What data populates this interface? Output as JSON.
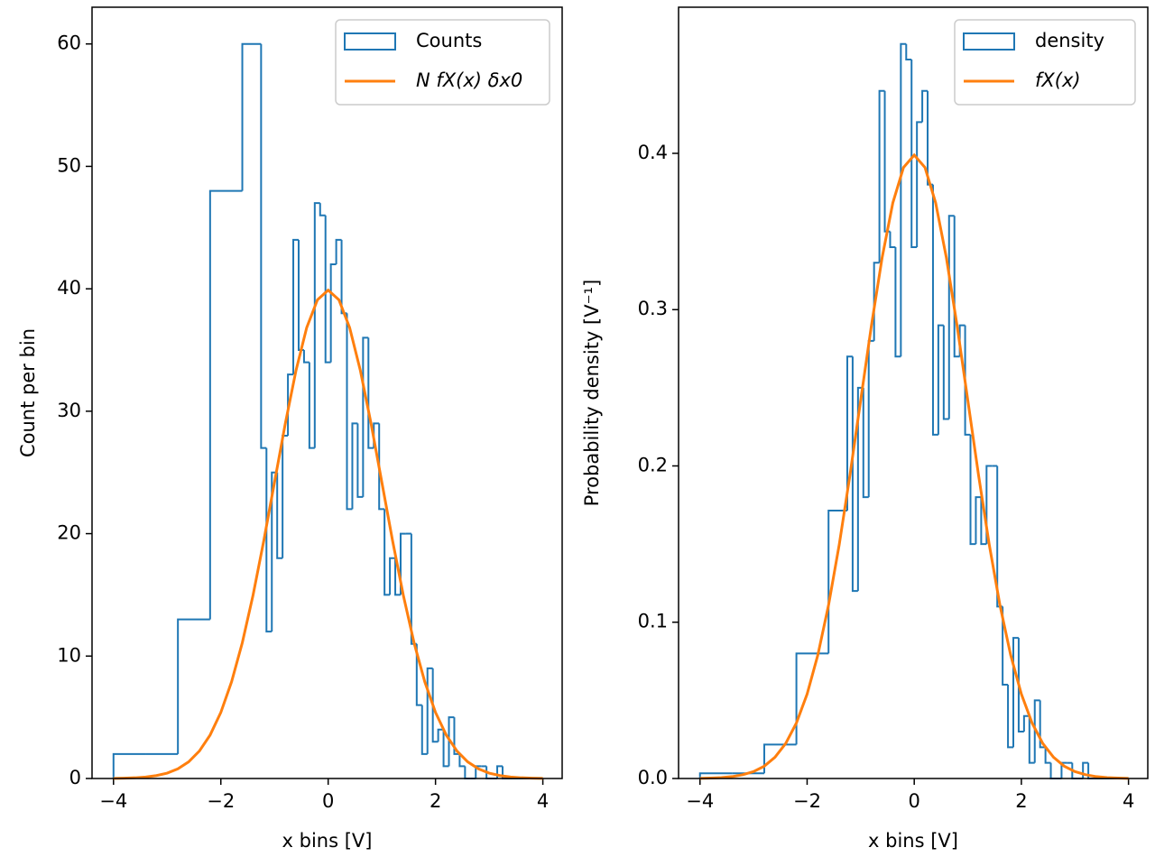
{
  "chart_data": [
    {
      "type": "histogram",
      "xlabel": "x bins [V]",
      "ylabel": "Count per bin",
      "xlim": [
        -4.4,
        4.36
      ],
      "ylim": [
        0,
        63
      ],
      "xticks": [
        {
          "value": -4,
          "label": "−4"
        },
        {
          "value": -2,
          "label": "−2"
        },
        0,
        2,
        4
      ],
      "yticks": [
        0,
        10,
        20,
        30,
        40,
        50,
        60
      ],
      "legend": "upper right",
      "series": [
        {
          "name": "Counts",
          "type": "step",
          "color": "#1f77b4",
          "bins": [
            -4,
            -3.4,
            -2.8,
            -2.2,
            -1.6,
            -1.25,
            -1.15,
            -1.05,
            -0.95,
            -0.85,
            -0.75,
            -0.65,
            -0.55,
            -0.45,
            -0.35,
            -0.25,
            -0.15,
            -0.05,
            0.05,
            0.15,
            0.25,
            0.35,
            0.45,
            0.55,
            0.65,
            0.75,
            0.85,
            0.95,
            1.05,
            1.15,
            1.25,
            1.35,
            1.45,
            1.55,
            1.65,
            1.75,
            1.85,
            1.95,
            2.05,
            2.15,
            2.25,
            2.35,
            2.45,
            2.55,
            2.65,
            2.75,
            2.85,
            2.95,
            3.05,
            3.15,
            3.25,
            3.35,
            3.45,
            3.55,
            3.65,
            3.75,
            3.85,
            3.95
          ],
          "values": [
            2,
            2,
            13,
            48,
            60,
            27,
            12,
            25,
            18,
            28,
            33,
            44,
            35,
            34,
            27,
            47,
            46,
            34,
            42,
            44,
            38,
            22,
            29,
            23,
            36,
            27,
            29,
            22,
            15,
            18,
            15,
            20,
            20,
            11,
            6,
            2,
            9,
            3,
            4,
            1,
            5,
            2,
            1,
            0,
            0,
            1,
            1,
            0,
            0,
            1,
            0,
            0,
            0,
            0,
            0,
            0,
            0
          ]
        },
        {
          "name": "N fX(x) δx0",
          "type": "line",
          "color": "#ff7f0e",
          "x": [
            -4,
            -3.8,
            -3.6,
            -3.4,
            -3.2,
            -3,
            -2.8,
            -2.6,
            -2.4,
            -2.2,
            -2,
            -1.8,
            -1.6,
            -1.4,
            -1.2,
            -1,
            -0.8,
            -0.6,
            -0.4,
            -0.2,
            0,
            0.2,
            0.4,
            0.6,
            0.8,
            1,
            1.2,
            1.4,
            1.6,
            1.8,
            2,
            2.2,
            2.4,
            2.6,
            2.8,
            3,
            3.2,
            3.4,
            3.6,
            3.8,
            4
          ],
          "values": [
            0.01,
            0.03,
            0.06,
            0.12,
            0.24,
            0.44,
            0.79,
            1.36,
            2.24,
            3.55,
            5.4,
            7.9,
            11.09,
            14.97,
            19.42,
            24.2,
            28.97,
            33.32,
            36.83,
            39.1,
            39.89,
            39.1,
            36.83,
            33.32,
            28.97,
            24.2,
            19.42,
            14.97,
            11.09,
            7.9,
            5.4,
            3.55,
            2.24,
            1.36,
            0.79,
            0.44,
            0.24,
            0.12,
            0.06,
            0.03,
            0.01
          ]
        }
      ]
    },
    {
      "type": "histogram",
      "xlabel": "x bins [V]",
      "ylabel": "Probability density [V⁻¹]",
      "xlim": [
        -4.4,
        4.36
      ],
      "ylim": [
        0,
        0.4935
      ],
      "xticks": [
        {
          "value": -4,
          "label": "−4"
        },
        {
          "value": -2,
          "label": "−2"
        },
        0,
        2,
        4
      ],
      "yticks": [
        {
          "value": 0,
          "label": "0.0"
        },
        0.1,
        0.2,
        0.3,
        0.4
      ],
      "legend": "upper right",
      "series": [
        {
          "name": "density",
          "type": "step",
          "color": "#1f77b4",
          "bins": [
            -4,
            -3.4,
            -2.8,
            -2.2,
            -1.6,
            -1.25,
            -1.15,
            -1.05,
            -0.95,
            -0.85,
            -0.75,
            -0.65,
            -0.55,
            -0.45,
            -0.35,
            -0.25,
            -0.15,
            -0.05,
            0.05,
            0.15,
            0.25,
            0.35,
            0.45,
            0.55,
            0.65,
            0.75,
            0.85,
            0.95,
            1.05,
            1.15,
            1.25,
            1.35,
            1.45,
            1.55,
            1.65,
            1.75,
            1.85,
            1.95,
            2.05,
            2.15,
            2.25,
            2.35,
            2.45,
            2.55,
            2.65,
            2.75,
            2.85,
            2.95,
            3.05,
            3.15,
            3.25,
            3.35,
            3.45,
            3.55,
            3.65,
            3.75,
            3.85,
            3.95
          ],
          "values": [
            0.0033,
            0.0033,
            0.0217,
            0.08,
            0.1714,
            0.27,
            0.12,
            0.25,
            0.18,
            0.28,
            0.33,
            0.44,
            0.35,
            0.34,
            0.27,
            0.47,
            0.46,
            0.34,
            0.42,
            0.44,
            0.38,
            0.22,
            0.29,
            0.23,
            0.36,
            0.27,
            0.29,
            0.22,
            0.15,
            0.18,
            0.15,
            0.2,
            0.2,
            0.11,
            0.06,
            0.02,
            0.09,
            0.03,
            0.04,
            0.01,
            0.05,
            0.02,
            0.01,
            0,
            0,
            0.01,
            0.01,
            0,
            0,
            0.01,
            0,
            0,
            0,
            0,
            0,
            0,
            0
          ]
        },
        {
          "name": "fX(x)",
          "type": "line",
          "color": "#ff7f0e",
          "x": [
            -4,
            -3.8,
            -3.6,
            -3.4,
            -3.2,
            -3,
            -2.8,
            -2.6,
            -2.4,
            -2.2,
            -2,
            -1.8,
            -1.6,
            -1.4,
            -1.2,
            -1,
            -0.8,
            -0.6,
            -0.4,
            -0.2,
            0,
            0.2,
            0.4,
            0.6,
            0.8,
            1,
            1.2,
            1.4,
            1.6,
            1.8,
            2,
            2.2,
            2.4,
            2.6,
            2.8,
            3,
            3.2,
            3.4,
            3.6,
            3.8,
            4
          ],
          "values": [
            0.0001,
            0.0003,
            0.0006,
            0.0012,
            0.0024,
            0.0044,
            0.0079,
            0.0136,
            0.0224,
            0.0355,
            0.054,
            0.079,
            0.1109,
            0.1497,
            0.1942,
            0.242,
            0.2897,
            0.3332,
            0.3683,
            0.391,
            0.3989,
            0.391,
            0.3683,
            0.3332,
            0.2897,
            0.242,
            0.1942,
            0.1497,
            0.1109,
            0.079,
            0.054,
            0.0355,
            0.0224,
            0.0136,
            0.0079,
            0.0044,
            0.0024,
            0.0012,
            0.0006,
            0.0003,
            0.0001
          ]
        }
      ]
    }
  ]
}
